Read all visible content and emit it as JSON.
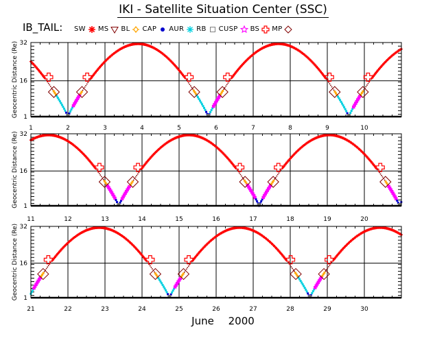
{
  "title": "IKI - Satellite Situation Center (SSC)",
  "legend_label": "IB_TAIL:",
  "legend": [
    {
      "label": "SW",
      "marker": "red-asterisk",
      "color": "#ff0000"
    },
    {
      "label": "MS",
      "marker": "triangle-down",
      "color": "#800000"
    },
    {
      "label": "BL",
      "marker": "sun",
      "color": "#ffa500"
    },
    {
      "label": "CAP",
      "marker": "filled-dot",
      "color": "#0000cd"
    },
    {
      "label": "AUR",
      "marker": "asterisk",
      "color": "#00d0e0"
    },
    {
      "label": "RB",
      "marker": "square",
      "color": "#808080"
    },
    {
      "label": "CUSP",
      "marker": "star",
      "color": "#ff00ff"
    },
    {
      "label": "BS",
      "marker": "cross",
      "color": "#ff0000"
    },
    {
      "label": "MP",
      "marker": "diamond",
      "color": "#800000"
    }
  ],
  "footer": {
    "month": "June",
    "year": "2000"
  },
  "chart_data": [
    {
      "type": "scatter",
      "panel": 1,
      "xlabel": "",
      "ylabel": "Geocentric Distance (Re)",
      "xlim": [
        1,
        11
      ],
      "ylim": [
        1,
        32
      ],
      "x_ticks": [
        "1",
        "2",
        "3",
        "4",
        "5",
        "6",
        "7",
        "8",
        "9",
        "10"
      ],
      "y_ticks": [
        "1",
        "16",
        "32"
      ],
      "grid": true,
      "perigees_day": [
        2.0,
        5.85,
        9.65
      ],
      "apogees_day": [
        3.9,
        7.75
      ],
      "apogee_re": 31.5,
      "regions": [
        "SW",
        "BS",
        "MS",
        "MP",
        "BL",
        "AUR",
        "CAP",
        "RB",
        "CUSP"
      ]
    },
    {
      "type": "scatter",
      "panel": 2,
      "xlabel": "",
      "ylabel": "Geocentric Distance (Re)",
      "xlim": [
        11,
        21
      ],
      "ylim": [
        1,
        32
      ],
      "x_ticks": [
        "11",
        "12",
        "13",
        "14",
        "15",
        "16",
        "17",
        "18",
        "19",
        "20"
      ],
      "y_ticks": [
        "1",
        "16",
        "32"
      ],
      "grid": true,
      "perigees_day": [
        13.45,
        17.25,
        21.0
      ],
      "apogees_day": [
        11.55,
        15.35,
        19.15
      ],
      "apogee_re": 31.5,
      "regions": [
        "SW",
        "BS",
        "MS",
        "MP",
        "BL",
        "AUR",
        "CAP",
        "RB",
        "CUSP"
      ]
    },
    {
      "type": "scatter",
      "panel": 3,
      "xlabel": "June 2000",
      "ylabel": "Geocentric Distance (Re)",
      "xlim": [
        21,
        31
      ],
      "ylim": [
        1,
        32
      ],
      "x_ticks": [
        "21",
        "22",
        "23",
        "24",
        "25",
        "26",
        "27",
        "28",
        "29",
        "30"
      ],
      "y_ticks": [
        "1",
        "16",
        "32"
      ],
      "grid": true,
      "perigees_day": [
        21.0,
        24.8,
        28.6
      ],
      "apogees_day": [
        22.95,
        26.75,
        30.55
      ],
      "apogee_re": 31.5,
      "regions": [
        "SW",
        "BS",
        "MS",
        "MP",
        "BL",
        "AUR",
        "CAP",
        "RB",
        "CUSP"
      ]
    }
  ]
}
